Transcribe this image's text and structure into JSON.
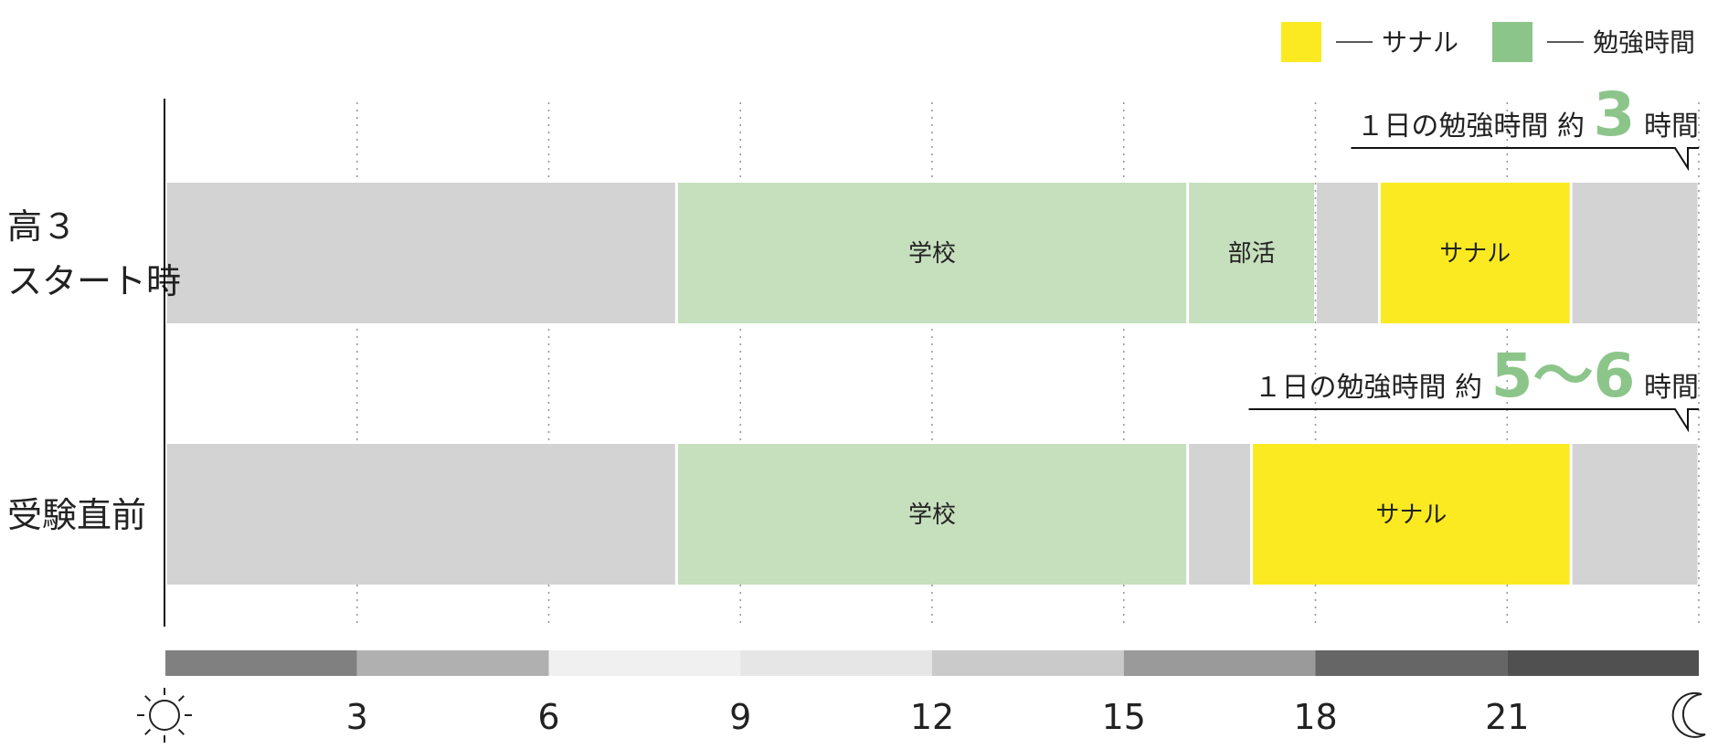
{
  "chart_data": {
    "type": "bar",
    "subtype": "timeline",
    "x_axis": {
      "range": [
        0,
        24
      ],
      "ticks": [
        3,
        6,
        9,
        12,
        15,
        18,
        21
      ],
      "tick_labels": [
        "3",
        "6",
        "9",
        "12",
        "15",
        "18",
        "21"
      ],
      "start_icon": "sun-icon",
      "end_icon": "moon-icon",
      "grid": "dotted",
      "gradient_band": [
        {
          "from": 0,
          "to": 3,
          "color": "#808080"
        },
        {
          "from": 3,
          "to": 6,
          "color": "#b0b0b0"
        },
        {
          "from": 6,
          "to": 9,
          "color": "#f0f0f0"
        },
        {
          "from": 9,
          "to": 12,
          "color": "#e6e6e6"
        },
        {
          "from": 12,
          "to": 15,
          "color": "#cacaca"
        },
        {
          "from": 15,
          "to": 18,
          "color": "#9a9a9a"
        },
        {
          "from": 18,
          "to": 21,
          "color": "#666666"
        },
        {
          "from": 21,
          "to": 24,
          "color": "#505050"
        }
      ]
    },
    "legend": {
      "position": "top-right",
      "items": [
        {
          "label": "サナル",
          "color": "#fbea22"
        },
        {
          "label": "勉強時間",
          "color": "#8cc58a"
        }
      ]
    },
    "colors": {
      "other": "#d3d3d3",
      "school": "#c6dfbd",
      "sanaru": "#fbea22",
      "highlight": "#8cc58a"
    },
    "rows": [
      {
        "label_lines": [
          "高３",
          "スタート時"
        ],
        "note": {
          "prefix": "１日の勉強時間",
          "approx": "約",
          "value": "3",
          "unit": "時間"
        },
        "segments": [
          {
            "start": 0,
            "end": 8,
            "kind": "other",
            "label": ""
          },
          {
            "start": 8,
            "end": 16,
            "kind": "school",
            "label": "学校"
          },
          {
            "start": 16,
            "end": 18,
            "kind": "school",
            "label": "部活"
          },
          {
            "start": 18,
            "end": 19,
            "kind": "other",
            "label": ""
          },
          {
            "start": 19,
            "end": 22,
            "kind": "sanaru",
            "label": "サナル"
          },
          {
            "start": 22,
            "end": 24,
            "kind": "other",
            "label": ""
          }
        ]
      },
      {
        "label_lines": [
          "受験直前"
        ],
        "note": {
          "prefix": "１日の勉強時間",
          "approx": "約",
          "value": "5～6",
          "unit": "時間"
        },
        "segments": [
          {
            "start": 0,
            "end": 8,
            "kind": "other",
            "label": ""
          },
          {
            "start": 8,
            "end": 16,
            "kind": "school",
            "label": "学校"
          },
          {
            "start": 16,
            "end": 17,
            "kind": "other",
            "label": ""
          },
          {
            "start": 17,
            "end": 22,
            "kind": "sanaru",
            "label": "サナル"
          },
          {
            "start": 22,
            "end": 24,
            "kind": "other",
            "label": ""
          }
        ]
      }
    ]
  }
}
